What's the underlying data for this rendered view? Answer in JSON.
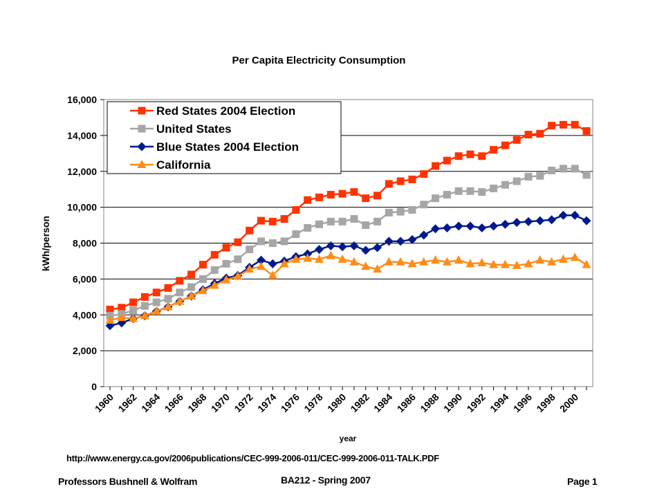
{
  "chart_data": {
    "type": "line",
    "title": "Per Capita Electricity Consumption",
    "xlabel": "year",
    "ylabel": "kWh/person",
    "xlim": [
      1960,
      2001
    ],
    "ylim": [
      0,
      16000
    ],
    "yticks": [
      0,
      2000,
      4000,
      6000,
      8000,
      10000,
      12000,
      14000,
      16000
    ],
    "ytick_labels": [
      "0",
      "2,000",
      "4,000",
      "6,000",
      "8,000",
      "10,000",
      "12,000",
      "14,000",
      "16,000"
    ],
    "xticks": [
      1960,
      1962,
      1964,
      1966,
      1968,
      1970,
      1972,
      1974,
      1976,
      1978,
      1980,
      1982,
      1984,
      1986,
      1988,
      1990,
      1992,
      1994,
      1996,
      1998,
      2000
    ],
    "xtick_labels": [
      "1960",
      "1962",
      "1964",
      "1966",
      "1968",
      "1970",
      "1972",
      "1974",
      "1976",
      "1978",
      "1980",
      "1982",
      "1984",
      "1986",
      "1988",
      "1990",
      "1992",
      "1994",
      "1996",
      "1998",
      "2000"
    ],
    "grid": "horizontal",
    "legend_position": "top-left",
    "x": [
      1960,
      1961,
      1962,
      1963,
      1964,
      1965,
      1966,
      1967,
      1968,
      1969,
      1970,
      1971,
      1972,
      1973,
      1974,
      1975,
      1976,
      1977,
      1978,
      1979,
      1980,
      1981,
      1982,
      1983,
      1984,
      1985,
      1986,
      1987,
      1988,
      1989,
      1990,
      1991,
      1992,
      1993,
      1994,
      1995,
      1996,
      1997,
      1998,
      1999,
      2000,
      2001
    ],
    "series": [
      {
        "name": "Red States 2004 Election",
        "color": "#ff3300",
        "marker": "square",
        "values": [
          4300,
          4400,
          4700,
          5000,
          5250,
          5500,
          5900,
          6250,
          6800,
          7350,
          7750,
          8050,
          8700,
          9250,
          9200,
          9350,
          9850,
          10400,
          10550,
          10700,
          10750,
          10850,
          10500,
          10650,
          11300,
          11450,
          11550,
          11850,
          12300,
          12600,
          12850,
          12950,
          12850,
          13200,
          13450,
          13750,
          14050,
          14100,
          14550,
          14600,
          14600,
          14250
        ]
      },
      {
        "name": "United States",
        "color": "#a6a6a6",
        "marker": "square",
        "values": [
          3950,
          4050,
          4250,
          4500,
          4700,
          4900,
          5250,
          5550,
          6000,
          6500,
          6850,
          7100,
          7650,
          8100,
          8000,
          8100,
          8500,
          8850,
          9050,
          9200,
          9200,
          9350,
          9000,
          9200,
          9700,
          9750,
          9850,
          10150,
          10500,
          10700,
          10900,
          10900,
          10850,
          11050,
          11250,
          11450,
          11700,
          11750,
          12050,
          12150,
          12150,
          11800
        ]
      },
      {
        "name": "Blue States 2004 Election",
        "color": "#001a8c",
        "marker": "diamond",
        "values": [
          3400,
          3550,
          3800,
          3950,
          4200,
          4450,
          4750,
          5050,
          5400,
          5750,
          6050,
          6200,
          6650,
          7050,
          6850,
          7000,
          7250,
          7400,
          7650,
          7850,
          7800,
          7850,
          7600,
          7750,
          8100,
          8100,
          8200,
          8450,
          8800,
          8850,
          8950,
          8950,
          8850,
          8950,
          9050,
          9150,
          9200,
          9250,
          9300,
          9550,
          9550,
          9250
        ]
      },
      {
        "name": "California",
        "color": "#ff8c1a",
        "marker": "triangle",
        "values": [
          3700,
          3850,
          3800,
          3950,
          4200,
          4450,
          4750,
          5050,
          5350,
          5650,
          5950,
          6150,
          6550,
          6700,
          6200,
          6850,
          7100,
          7150,
          7100,
          7300,
          7100,
          6950,
          6700,
          6550,
          6950,
          6950,
          6850,
          6950,
          7050,
          6950,
          7050,
          6850,
          6900,
          6800,
          6800,
          6750,
          6850,
          7050,
          6950,
          7100,
          7200,
          6800
        ]
      }
    ]
  },
  "footer": {
    "source_url": "http://www.energy.ca.gov/2006publications/CEC-999-2006-011/CEC-999-2006-011-TALK.PDF",
    "left": "Professors Bushnell & Wolfram",
    "center": "BA212 - Spring 2007",
    "right": "Page 1"
  }
}
